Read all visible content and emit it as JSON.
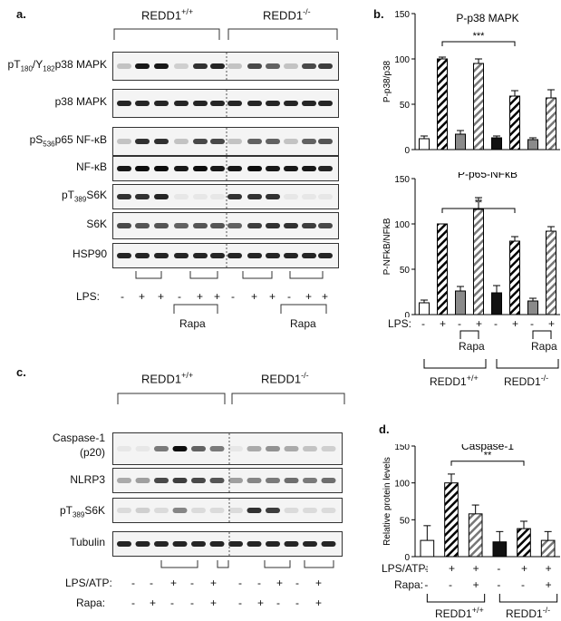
{
  "panels": {
    "a": "a.",
    "b": "b.",
    "c": "c.",
    "d": "d."
  },
  "genotypes": {
    "wt": "REDD1",
    "wt_sup": "+/+",
    "ko": "REDD1",
    "ko_sup": "-/-"
  },
  "panel_a": {
    "rows": [
      {
        "label": "pT180/Y182p38 MAPK",
        "parts": [
          "pT",
          "180",
          "/Y",
          "182",
          "p38 MAPK"
        ]
      },
      {
        "label": "p38 MAPK"
      },
      {
        "label": "pS536p65 NF-κB",
        "parts": [
          "pS",
          "536",
          "p65 NF-κB"
        ]
      },
      {
        "label": "NF-κB"
      },
      {
        "label": "pT389S6K",
        "parts": [
          "pT",
          "389",
          "S6K"
        ]
      },
      {
        "label": "S6K"
      },
      {
        "label": "HSP90"
      }
    ],
    "lps_label": "LPS:",
    "lps": [
      "-",
      "+",
      "+",
      "-",
      "+",
      "+",
      "-",
      "+",
      "+",
      "-",
      "+",
      "+"
    ],
    "rapa": "Rapa"
  },
  "panel_c": {
    "rows": [
      {
        "label": "Caspase-1"
      },
      {
        "label": "(p20)"
      },
      {
        "label": "NLRP3"
      },
      {
        "label": "pT389S6K",
        "parts": [
          "pT",
          "389",
          "S6K"
        ]
      },
      {
        "label": "Tubulin"
      }
    ],
    "lps_label": "LPS/ATP:",
    "lps": [
      "-",
      "-",
      "+",
      "-",
      "+",
      "-",
      "-",
      "+",
      "-",
      "+"
    ],
    "rapa_label": "Rapa:",
    "rapa": [
      "-",
      "+",
      "-",
      "-",
      "+",
      "-",
      "+",
      "-",
      "-",
      "+"
    ]
  },
  "chart_data": [
    {
      "type": "bar",
      "title": "P-p38 MAPK",
      "ylabel": "P-p38/p38",
      "ylim": [
        0,
        150
      ],
      "yticks": [
        0,
        50,
        100,
        150
      ],
      "values": [
        12,
        100,
        17,
        95,
        13,
        59,
        11,
        57
      ],
      "errors": [
        3,
        2,
        4,
        5,
        2,
        6,
        2,
        9
      ],
      "significance": {
        "label": "***",
        "from": 1,
        "to": 5
      }
    },
    {
      "type": "bar",
      "title": "P-p65-NFκB",
      "ylabel": "P-NFkB/NFkB",
      "ylim": [
        0,
        150
      ],
      "yticks": [
        0,
        50,
        100,
        150
      ],
      "values": [
        13,
        100,
        26,
        116,
        24,
        81,
        15,
        92
      ],
      "errors": [
        3,
        0,
        5,
        13,
        8,
        5,
        3,
        5
      ],
      "significance": {
        "label": "**",
        "from": 1,
        "to": 5
      },
      "lps_label": "LPS:",
      "lps": [
        "-",
        "+",
        "-",
        "+",
        "-",
        "+",
        "-",
        "+"
      ],
      "rapa": "Rapa"
    },
    {
      "type": "bar",
      "title": "Caspase-1",
      "ylabel": "Relative protein levels",
      "ylim": [
        0,
        150
      ],
      "yticks": [
        0,
        50,
        100,
        150
      ],
      "values": [
        22,
        100,
        58,
        20,
        38,
        22
      ],
      "errors": [
        20,
        12,
        12,
        14,
        10,
        12
      ],
      "significance": {
        "label": "**",
        "from": 1,
        "to": 4
      },
      "lps_label": "LPS/ATP:",
      "lps": [
        "-",
        "+",
        "+",
        "-",
        "+",
        "+"
      ],
      "rapa_label": "Rapa:",
      "rapa": [
        "-",
        "-",
        "+",
        "-",
        "-",
        "+"
      ]
    }
  ]
}
